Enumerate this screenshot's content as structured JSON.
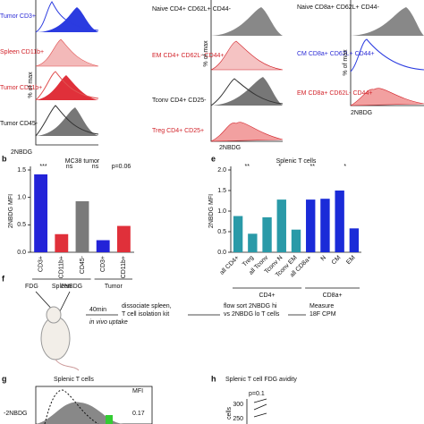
{
  "panel_a": {
    "labels": [
      "Tumor CD3+",
      "Spleen CD11b+",
      "Tumor CD11b+",
      "Tumor CD45-"
    ],
    "y_label": "% of max",
    "x_label": "2NBDG"
  },
  "panel_a2": {
    "labels": [
      "Naive CD4+ CD62L+ CD44-",
      "EM CD4+ CD62L- CD44+",
      "Tconv CD4+ CD25-",
      "Treg CD4+ CD25+"
    ],
    "y_label": "% of max",
    "x_label": "2NBDG"
  },
  "panel_a3": {
    "labels": [
      "Naive CD8a+ CD62L+ CD44-",
      "CM CD8a+ CD62L+ CD44+",
      "EM CD8a+ CD62L- CD44+"
    ],
    "y_label": "% of max",
    "x_label": "2NBDG"
  },
  "chart_data": [
    {
      "type": "bar",
      "panel": "b",
      "title": "MC38 tumor",
      "y_label": "2NBDG MFI",
      "categories": [
        "CD3+",
        "CD11b+",
        "CD45-",
        "CD3+",
        "CD11b+"
      ],
      "values": [
        1.42,
        0.33,
        0.93,
        0.22,
        0.48
      ],
      "colors": [
        "#2323d8",
        "#e0303a",
        "#7a7a7a",
        "#2323d8",
        "#e0303a"
      ],
      "groups": [
        "Spleen",
        "Tumor"
      ],
      "annotations": [
        "***",
        "ns",
        "ns",
        "p=0.06"
      ],
      "ylim": [
        0,
        1.5
      ],
      "yticks": [
        {
          "value": 0,
          "label": "0.0"
        },
        {
          "value": 0.5,
          "label": "0.5"
        },
        {
          "value": 1,
          "label": "1.0"
        },
        {
          "value": 1.5,
          "label": "1.5"
        }
      ]
    },
    {
      "type": "bar",
      "panel": "e",
      "title": "Splenic T cells",
      "y_label": "2NBDG MFI",
      "categories": [
        "all CD4+",
        "Treg",
        "all Tconv",
        "Tconv N",
        "Tconv EM",
        "all CD8a+",
        "N",
        "CM",
        "EM"
      ],
      "values": [
        0.88,
        0.45,
        0.85,
        1.28,
        0.55,
        1.28,
        1.3,
        1.5,
        0.58
      ],
      "colors": [
        "#2a9aa8",
        "#2a9aa8",
        "#2a9aa8",
        "#2a9aa8",
        "#2a9aa8",
        "#1a2bd8",
        "#1a2bd8",
        "#1a2bd8",
        "#1a2bd8"
      ],
      "groups": [
        "CD4+",
        "CD8a+"
      ],
      "annotations": [
        "**",
        "*",
        "**",
        "*"
      ],
      "ylim": [
        0,
        2
      ],
      "yticks": [
        {
          "value": 0,
          "label": "0.0"
        },
        {
          "value": 0.5,
          "label": "0.5"
        },
        {
          "value": 1,
          "label": "1.0"
        },
        {
          "value": 1.5,
          "label": "1.5"
        },
        {
          "value": 2,
          "label": "2.0"
        }
      ]
    }
  ],
  "panel_f": {
    "letter": "f",
    "fdg": "FDG",
    "nbdg": "2NBDG",
    "time": "40min",
    "uptake": "in vivo uptake",
    "step1": [
      "dissociate spleen,",
      "T cell isolation kit"
    ],
    "step2": [
      "flow sort 2NBDG hi",
      "vs 2NBDG lo T cells"
    ],
    "step3": [
      "Measure",
      "18F CPM"
    ]
  },
  "panel_g": {
    "letter": "g",
    "title": "Splenic T cells",
    "mfi": "MFI",
    "axis": "-2NBDG",
    "value": "0.17"
  },
  "panel_h": {
    "letter": "h",
    "title": "Splenic T cell FDG avidity",
    "p": "p=0.1",
    "ticks": [
      "300",
      "250"
    ],
    "y_label": "cells"
  }
}
